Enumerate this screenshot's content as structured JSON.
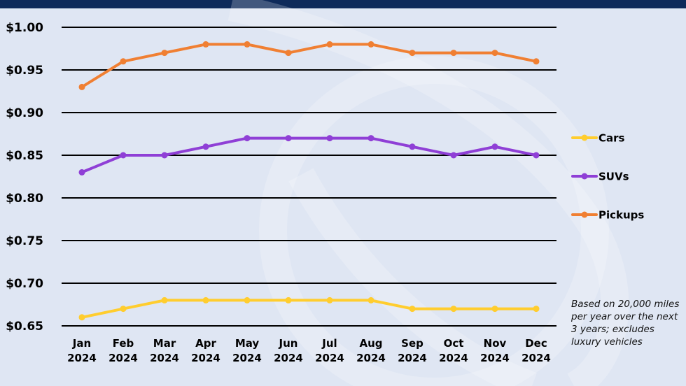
{
  "chart_data": {
    "type": "line",
    "categories": [
      [
        "Jan",
        "2024"
      ],
      [
        "Feb",
        "2024"
      ],
      [
        "Mar",
        "2024"
      ],
      [
        "Apr",
        "2024"
      ],
      [
        "May",
        "2024"
      ],
      [
        "Jun",
        "2024"
      ],
      [
        "Jul",
        "2024"
      ],
      [
        "Aug",
        "2024"
      ],
      [
        "Sep",
        "2024"
      ],
      [
        "Oct",
        "2024"
      ],
      [
        "Nov",
        "2024"
      ],
      [
        "Dec",
        "2024"
      ]
    ],
    "y_ticks": [
      "$0.65",
      "$0.70",
      "$0.75",
      "$0.80",
      "$0.85",
      "$0.90",
      "$0.95",
      "$1.00"
    ],
    "y_tick_values": [
      0.65,
      0.7,
      0.75,
      0.8,
      0.85,
      0.9,
      0.95,
      1.0
    ],
    "ylim": [
      0.65,
      1.0
    ],
    "grid": true,
    "legend_position": "right",
    "series": [
      {
        "name": "Cars",
        "color": "#ffcd2e",
        "values": [
          0.66,
          0.67,
          0.68,
          0.68,
          0.68,
          0.68,
          0.68,
          0.68,
          0.67,
          0.67,
          0.67,
          0.67
        ]
      },
      {
        "name": "SUVs",
        "color": "#8f3fd6",
        "values": [
          0.83,
          0.85,
          0.85,
          0.86,
          0.87,
          0.87,
          0.87,
          0.87,
          0.86,
          0.85,
          0.86,
          0.85
        ]
      },
      {
        "name": "Pickups",
        "color": "#f07f32",
        "values": [
          0.93,
          0.96,
          0.97,
          0.98,
          0.98,
          0.97,
          0.98,
          0.98,
          0.97,
          0.97,
          0.97,
          0.96
        ]
      }
    ],
    "note": "Based on 20,000 miles per year over the next 3 years; excludes luxury vehicles"
  }
}
